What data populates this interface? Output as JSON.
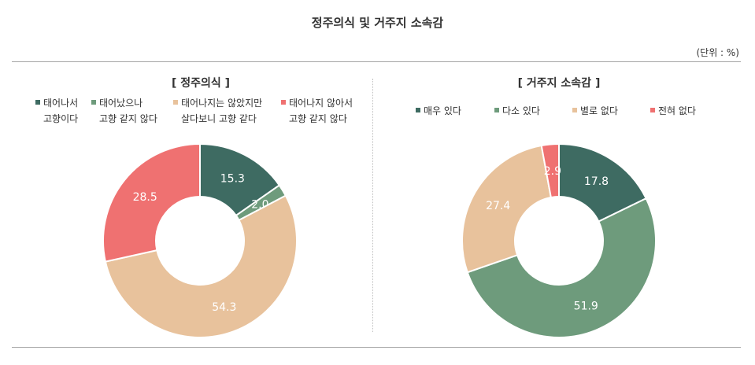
{
  "title": "정주의식 및 거주지 소속감",
  "unit": "(단위 : %)",
  "chart_data": [
    {
      "type": "pie",
      "title": "[ 정주의식 ]",
      "categories": [
        {
          "line1": "태어나서",
          "line2": "고향이다"
        },
        {
          "line1": "태어났으나",
          "line2": "고향 같지 않다"
        },
        {
          "line1": "태어나지는 않았지만",
          "line2": "살다보니 고향 같다"
        },
        {
          "line1": "태어나지 않아서",
          "line2": "고향 같지 않다"
        }
      ],
      "values": [
        15.3,
        2.0,
        54.3,
        28.5
      ],
      "value_labels": [
        "15.3",
        "2.0",
        "54.3",
        "28.5"
      ],
      "colors": [
        "#3e6b62",
        "#6e9b7c",
        "#e8c29c",
        "#ef7171"
      ],
      "legend": "top"
    },
    {
      "type": "pie",
      "title": "[ 거주지 소속감 ]",
      "categories": [
        {
          "line1": "매우 있다",
          "line2": ""
        },
        {
          "line1": "다소 있다",
          "line2": ""
        },
        {
          "line1": "별로 없다",
          "line2": ""
        },
        {
          "line1": "전혀 없다",
          "line2": ""
        }
      ],
      "values": [
        17.8,
        51.9,
        27.4,
        2.9
      ],
      "value_labels": [
        "17.8",
        "51.9",
        "27.4",
        "2.9"
      ],
      "colors": [
        "#3e6b62",
        "#6e9b7c",
        "#e8c29c",
        "#ef7171"
      ],
      "legend": "top"
    }
  ]
}
